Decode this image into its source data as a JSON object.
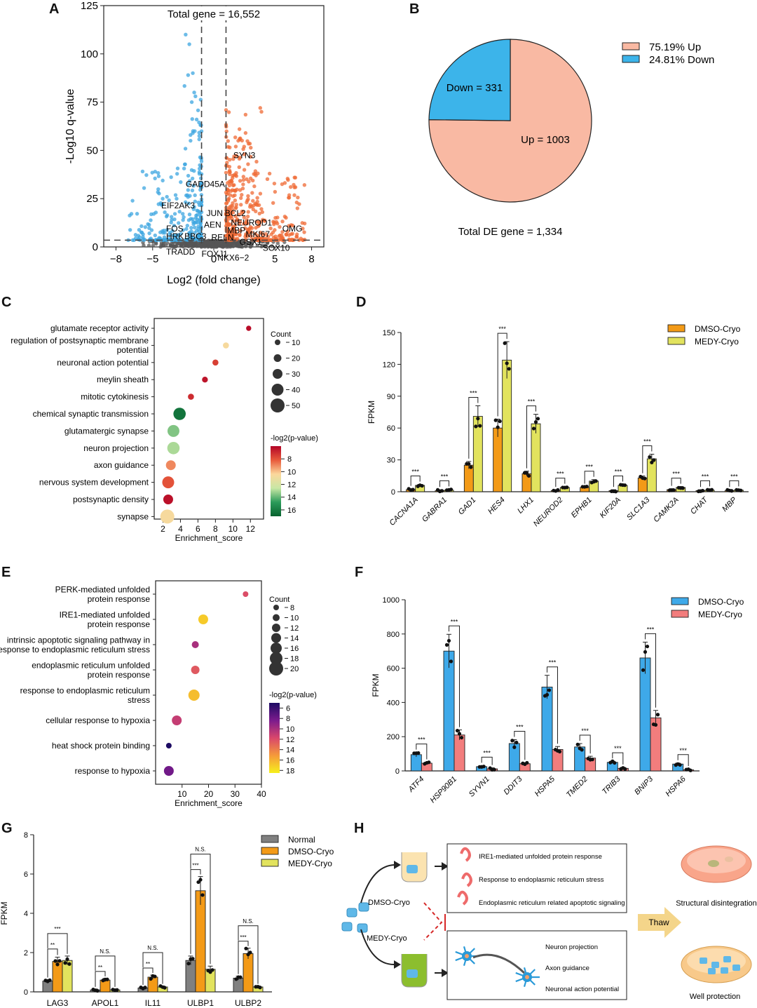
{
  "panel_labels": [
    "A",
    "B",
    "C",
    "D",
    "E",
    "F",
    "G",
    "H"
  ],
  "chart_data": [
    {
      "panel": "A",
      "type": "scatter",
      "title": "Total gene = 16,552",
      "xlabel": "Log2 (fold change)",
      "ylabel": "-Log10 q-value",
      "xlim": [
        -9,
        9
      ],
      "ylim": [
        0,
        125
      ],
      "xticks": [
        -8,
        -5,
        0,
        5,
        8
      ],
      "yticks": [
        0,
        25,
        50,
        75,
        100,
        125
      ],
      "thresholds": {
        "x": [
          -1,
          1
        ],
        "y": 3.5
      },
      "colors": {
        "up": "#ef6a34",
        "down": "#3ca6e0",
        "ns": "#555555"
      },
      "labels": [
        {
          "text": "SYN3",
          "x": 1.6,
          "y": 46
        },
        {
          "text": "GADD45A",
          "x": -2.3,
          "y": 31
        },
        {
          "text": "EIF2AK3",
          "x": -4.3,
          "y": 20
        },
        {
          "text": "JUN",
          "x": -0.6,
          "y": 16
        },
        {
          "text": "BCL2",
          "x": 0.9,
          "y": 16
        },
        {
          "text": "NEUROD1",
          "x": 1.4,
          "y": 11
        },
        {
          "text": "OMG",
          "x": 5.6,
          "y": 8
        },
        {
          "text": "FOS",
          "x": -3.9,
          "y": 8
        },
        {
          "text": "AEN",
          "x": -0.8,
          "y": 10
        },
        {
          "text": "MBP",
          "x": 1.1,
          "y": 7
        },
        {
          "text": "MKI67",
          "x": 2.6,
          "y": 5
        },
        {
          "text": "HRK",
          "x": -3.9,
          "y": 4
        },
        {
          "text": "BBC3",
          "x": -2.4,
          "y": 4
        },
        {
          "text": "RELN",
          "x": -0.2,
          "y": 3.5
        },
        {
          "text": "GSX1",
          "x": 2.1,
          "y": 1
        },
        {
          "text": "TRADD",
          "x": -3.9,
          "y": -4
        },
        {
          "text": "FOXJ1",
          "x": -1.0,
          "y": -5
        },
        {
          "text": "SOX10",
          "x": 4.0,
          "y": -2
        },
        {
          "text": "NKX6−2",
          "x": 0.3,
          "y": -7
        }
      ]
    },
    {
      "panel": "B",
      "type": "pie",
      "slices": [
        {
          "name": "Up",
          "value": 1003,
          "label": "Up = 1003",
          "legend": "75.19%  Up",
          "color": "#f9b9a3"
        },
        {
          "name": "Down",
          "value": 331,
          "label": "Down = 331",
          "legend": "24.81%  Down",
          "color": "#3cb4ea"
        }
      ],
      "caption": "Total DE gene = 1,334"
    },
    {
      "panel": "C",
      "type": "scatter",
      "xlabel": "Enrichment_score",
      "xlim": [
        1,
        13.5
      ],
      "xticks": [
        2,
        4,
        6,
        8,
        10,
        12
      ],
      "size_legend_title": "Count",
      "size_legend": [
        10,
        20,
        30,
        40,
        50
      ],
      "color_legend_title": "-log2(p-value)",
      "color_legend": [
        8,
        10,
        12,
        14,
        16
      ],
      "terms": [
        {
          "name": "glutamate receptor activity",
          "x": 11.8,
          "count": 8,
          "p": 6.2
        },
        {
          "name": "regulation of postsynaptic membrane potential",
          "x": 9.2,
          "count": 12,
          "p": 10.6
        },
        {
          "name": "neuronal action potential",
          "x": 8.0,
          "count": 12,
          "p": 7.5
        },
        {
          "name": "meylin sheath",
          "x": 6.8,
          "count": 11,
          "p": 6.4
        },
        {
          "name": "mitotic cytokinesis",
          "x": 5.2,
          "count": 12,
          "p": 7.0
        },
        {
          "name": "chemical synaptic transmission",
          "x": 3.9,
          "count": 42,
          "p": 16.3
        },
        {
          "name": "glutamatergic synapse",
          "x": 3.2,
          "count": 40,
          "p": 13.6
        },
        {
          "name": "neuron projection",
          "x": 3.2,
          "count": 42,
          "p": 13.0
        },
        {
          "name": "axon guidance",
          "x": 2.9,
          "count": 30,
          "p": 9.0
        },
        {
          "name": "nervous system development",
          "x": 2.6,
          "count": 40,
          "p": 8.0
        },
        {
          "name": "postsynaptic density",
          "x": 2.6,
          "count": 30,
          "p": 6.3
        },
        {
          "name": "synapse",
          "x": 2.5,
          "count": 50,
          "p": 10.6
        }
      ]
    },
    {
      "panel": "D",
      "type": "bar",
      "ylabel": "FPKM",
      "ylim": [
        0,
        150
      ],
      "yticks": [
        0,
        30,
        60,
        90,
        120,
        150
      ],
      "categories": [
        "CACNA1A",
        "GABRA1",
        "GAD1",
        "HES4",
        "LHX1",
        "NEUROD2",
        "EPHB1",
        "KIF20A",
        "SLC1A3",
        "CAMK2A",
        "CHAT",
        "MBP"
      ],
      "series": [
        {
          "name": "DMSO-Cryo",
          "color": "#f39a17",
          "values": [
            2,
            1,
            25,
            60,
            17,
            1,
            4,
            1,
            13,
            2,
            1,
            1
          ]
        },
        {
          "name": "MEDY-Cryo",
          "color": "#e2e35e",
          "values": [
            6,
            1.5,
            71,
            124,
            64,
            4,
            10,
            6,
            31,
            4,
            1.5,
            1.5
          ]
        }
      ],
      "significance": [
        "***",
        "***",
        "***",
        "***",
        "***",
        "***",
        "***",
        "***",
        "***",
        "***",
        "***",
        "***"
      ]
    },
    {
      "panel": "E",
      "type": "scatter",
      "xlabel": "Enrichment_score",
      "xlim": [
        0,
        40
      ],
      "xticks": [
        10,
        20,
        30,
        40
      ],
      "size_legend_title": "Count",
      "size_legend": [
        8,
        10,
        12,
        14,
        16,
        18,
        20
      ],
      "color_legend_title": "-log2(p-value)",
      "color_legend": [
        6,
        8,
        10,
        12,
        14,
        16,
        18
      ],
      "terms": [
        {
          "name": "PERK-mediated unfolded protein response",
          "x": 34,
          "count": 8,
          "p": 12
        },
        {
          "name": "IRE1-mediated unfolded protein response",
          "x": 18,
          "count": 14,
          "p": 17
        },
        {
          "name": "intrinsic apoptotic signaling pathway in response to endoplasmic reticulum stress",
          "x": 15,
          "count": 10,
          "p": 10
        },
        {
          "name": "endoplasmic reticulum unfolded protein response",
          "x": 15,
          "count": 12,
          "p": 12.5
        },
        {
          "name": "response to endoplasmic reticulum stress",
          "x": 14.5,
          "count": 16,
          "p": 16.5
        },
        {
          "name": "cellular response to hypoxia",
          "x": 8,
          "count": 14,
          "p": 11
        },
        {
          "name": "heat shock protein binding",
          "x": 5,
          "count": 8,
          "p": 5
        },
        {
          "name": "response to hypoxia",
          "x": 5,
          "count": 14,
          "p": 8
        }
      ]
    },
    {
      "panel": "F",
      "type": "bar",
      "ylabel": "FPKM",
      "ylim": [
        0,
        1000
      ],
      "yticks": [
        0,
        200,
        400,
        600,
        800,
        1000
      ],
      "categories": [
        "ATF4",
        "HSP90B1",
        "SYVN1",
        "DDIT3",
        "HSPA5",
        "TMED2",
        "TRIB3",
        "BNIP3",
        "HSPA6"
      ],
      "series": [
        {
          "name": "DMSO-Cryo",
          "color": "#3ea9e9",
          "values": [
            95,
            700,
            25,
            160,
            490,
            140,
            50,
            660,
            40
          ]
        },
        {
          "name": "MEDY-Cryo",
          "color": "#f27d7d",
          "values": [
            45,
            210,
            12,
            42,
            125,
            75,
            15,
            310,
            6
          ]
        }
      ],
      "significance": [
        "***",
        "***",
        "***",
        "***",
        "***",
        "***",
        "***",
        "***",
        "***"
      ]
    },
    {
      "panel": "G",
      "type": "bar",
      "ylabel": "FPKM",
      "ylim": [
        0,
        8
      ],
      "yticks": [
        0,
        2,
        4,
        6,
        8
      ],
      "categories": [
        "LAG3",
        "APOL1",
        "IL11",
        "ULBP1",
        "ULBP2"
      ],
      "series": [
        {
          "name": "Normal",
          "color": "#808080",
          "values": [
            0.55,
            0.1,
            0.2,
            1.6,
            0.7
          ]
        },
        {
          "name": "DMSO-Cryo",
          "color": "#f39a17",
          "values": [
            1.55,
            0.6,
            0.75,
            5.15,
            1.95
          ]
        },
        {
          "name": "MEDY-Cryo",
          "color": "#e2e35e",
          "values": [
            1.6,
            0.1,
            0.25,
            1.15,
            0.25
          ]
        }
      ],
      "significance": {
        "LAG3": [
          "**",
          "***"
        ],
        "APOL1": [
          "**",
          "N.S."
        ],
        "IL11": [
          "**",
          "N.S."
        ],
        "ULBP1": [
          "***",
          "N.S."
        ],
        "ULBP2": [
          "***",
          "N.S."
        ]
      }
    }
  ],
  "diagram_h": {
    "dmso_label": "DMSO-Cryo",
    "medy_label": "MEDY-Cryo",
    "dmso_items": [
      "IRE1-mediated unfolded protein response",
      "Response to endoplasmic reticulum stress",
      "Endoplasmic reticulum related apoptotic signaling"
    ],
    "medy_items": [
      "Neuron projection",
      "Axon guidance",
      "Neuronal action potential"
    ],
    "thaw_label": "Thaw",
    "result_top": "Structural disintegration",
    "result_bottom": "Well protection"
  }
}
